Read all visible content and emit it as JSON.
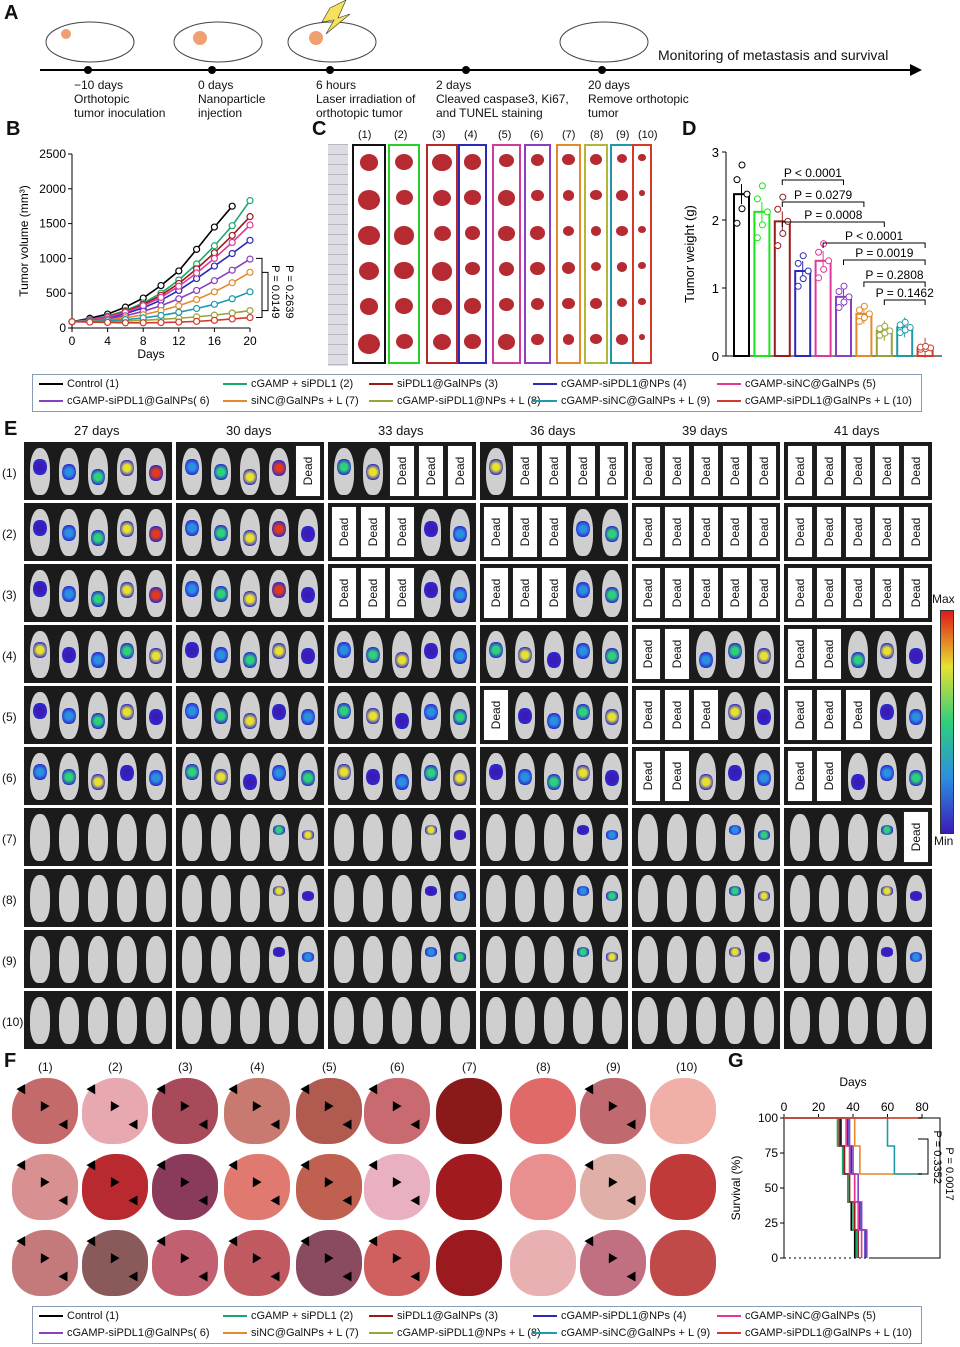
{
  "panels": {
    "a": "A",
    "b": "B",
    "c": "C",
    "d": "D",
    "e": "E",
    "f": "F",
    "g": "G"
  },
  "timeline": {
    "events": [
      {
        "day": "−10 days",
        "desc1": "Orthotopic",
        "desc2": "tumor inoculation"
      },
      {
        "day": "0 days",
        "desc1": "Nanoparticle",
        "desc2": "injection"
      },
      {
        "day": "6 hours",
        "desc1": "Laser irradiation of",
        "desc2": "orthotopic tumor"
      },
      {
        "day": "2 days",
        "desc1": "Cleaved caspase3, Ki67,",
        "desc2": "and TUNEL staining"
      },
      {
        "day": "20 days",
        "desc1": "Remove orthotopic",
        "desc2": "tumor"
      }
    ],
    "end_label": "Monitoring of metastasis and survival"
  },
  "legend": [
    {
      "label": "Control (1)",
      "color": "#000000"
    },
    {
      "label": "cGAMP + siPDL1 (2)",
      "color": "#19a86b"
    },
    {
      "label": "siPDL1@GalNPs (3)",
      "color": "#9b1b1b"
    },
    {
      "label": "cGAMP-siPDL1@NPs (4)",
      "color": "#2a2ab8"
    },
    {
      "label": "cGAMP-siNC@GalNPs (5)",
      "color": "#e0389a"
    },
    {
      "label": "cGAMP-siPDL1@GalNPs( 6)",
      "color": "#8a3fc0"
    },
    {
      "label": "siNC@GalNPs + L (7)",
      "color": "#e58a2a"
    },
    {
      "label": "cGAMP-siPDL1@NPs + L (8)",
      "color": "#9aa33a"
    },
    {
      "label": "cGAMP-siNC@GalNPs + L (9)",
      "color": "#1f9aa8"
    },
    {
      "label": "cGAMP-siPDL1@GalNPs + L (10)",
      "color": "#d43a2a"
    }
  ],
  "chart_data": [
    {
      "type": "line",
      "panel": "B",
      "xlabel": "Days",
      "ylabel": "Tumor volume (mm³)",
      "xticks": [
        "0",
        "4",
        "8",
        "12",
        "16",
        "20"
      ],
      "yticks": [
        "0",
        "500",
        "1000",
        "1500",
        "2000",
        "2500"
      ],
      "xlim": [
        0,
        20
      ],
      "ylim": [
        0,
        2500
      ],
      "x": [
        0,
        2,
        4,
        6,
        8,
        10,
        12,
        14,
        16,
        18,
        20
      ],
      "series": [
        {
          "name": "Control (1)",
          "color": "#000000",
          "x": [
            0,
            2,
            4,
            6,
            8,
            10,
            12,
            14,
            16,
            18
          ],
          "values": [
            90,
            140,
            200,
            300,
            430,
            610,
            820,
            1130,
            1450,
            1750
          ]
        },
        {
          "name": "cGAMP + siPDL1 (2)",
          "color": "#19a86b",
          "x": [
            0,
            2,
            4,
            6,
            8,
            10,
            12,
            14,
            16,
            18,
            20
          ],
          "values": [
            90,
            120,
            170,
            250,
            360,
            500,
            690,
            920,
            1180,
            1470,
            1830
          ]
        },
        {
          "name": "siPDL1@GalNPs (3)",
          "color": "#9b1b1b",
          "x": [
            0,
            2,
            4,
            6,
            8,
            10,
            12,
            14,
            16,
            18,
            20
          ],
          "values": [
            90,
            115,
            160,
            235,
            340,
            470,
            640,
            850,
            1080,
            1330,
            1600
          ]
        },
        {
          "name": "cGAMP-siPDL1@NPs (4)",
          "color": "#2a2ab8",
          "x": [
            0,
            2,
            4,
            6,
            8,
            10,
            12,
            14,
            16,
            18,
            20
          ],
          "values": [
            90,
            110,
            145,
            205,
            290,
            400,
            540,
            710,
            890,
            1070,
            1260
          ]
        },
        {
          "name": "cGAMP-siNC@GalNPs (5)",
          "color": "#e0389a",
          "x": [
            0,
            2,
            4,
            6,
            8,
            10,
            12,
            14,
            16,
            18,
            20
          ],
          "values": [
            90,
            115,
            155,
            225,
            320,
            440,
            600,
            790,
            1000,
            1230,
            1480
          ]
        },
        {
          "name": "cGAMP-siPDL1@GalNPs( 6)",
          "color": "#8a3fc0",
          "x": [
            0,
            2,
            4,
            6,
            8,
            10,
            12,
            14,
            16,
            18,
            20
          ],
          "values": [
            90,
            105,
            130,
            175,
            240,
            320,
            420,
            540,
            680,
            830,
            990
          ]
        },
        {
          "name": "siNC@GalNPs + L (7)",
          "color": "#e58a2a",
          "x": [
            0,
            2,
            4,
            6,
            8,
            10,
            12,
            14,
            16,
            18,
            20
          ],
          "values": [
            90,
            100,
            115,
            145,
            190,
            250,
            320,
            410,
            520,
            650,
            800
          ]
        },
        {
          "name": "cGAMP-siPDL1@NPs + L (8)",
          "color": "#9aa33a",
          "x": [
            0,
            2,
            4,
            6,
            8,
            10,
            12,
            14,
            16,
            18,
            20
          ],
          "values": [
            90,
            90,
            95,
            100,
            110,
            125,
            140,
            160,
            185,
            215,
            250
          ]
        },
        {
          "name": "cGAMP-siNC@GalNPs + L (9)",
          "color": "#1f9aa8",
          "x": [
            0,
            2,
            4,
            6,
            8,
            10,
            12,
            14,
            16,
            18,
            20
          ],
          "values": [
            90,
            95,
            105,
            120,
            145,
            180,
            225,
            280,
            340,
            420,
            520
          ]
        },
        {
          "name": "cGAMP-siPDL1@GalNPs + L (10)",
          "color": "#d43a2a",
          "x": [
            0,
            2,
            4,
            6,
            8,
            10,
            12,
            14,
            16,
            18,
            20
          ],
          "values": [
            90,
            85,
            80,
            75,
            75,
            78,
            85,
            95,
            110,
            130,
            150
          ]
        }
      ],
      "annotations": [
        "P = 0.2639",
        "P = 0.0149"
      ]
    },
    {
      "type": "bar",
      "panel": "D",
      "ylabel": "Tumor weight (g)",
      "yticks": [
        "0",
        "1",
        "2",
        "3"
      ],
      "ylim": [
        0,
        3
      ],
      "categories": [
        "(1)",
        "(2)",
        "(3)",
        "(4)",
        "(5)",
        "(6)",
        "(7)",
        "(8)",
        "(9)",
        "(10)"
      ],
      "values": [
        2.38,
        2.12,
        1.98,
        1.25,
        1.4,
        0.87,
        0.62,
        0.37,
        0.42,
        0.12
      ],
      "colors": [
        "#000000",
        "#19e619",
        "#9b1b1b",
        "#2a2ab8",
        "#e0389a",
        "#8a3fc0",
        "#e58a2a",
        "#9aa33a",
        "#1f9aa8",
        "#d43a2a"
      ],
      "annotations": [
        "P < 0.0001",
        "P = 0.0279",
        "P = 0.0008",
        "P < 0.0001",
        "P = 0.0019",
        "P = 0.2808",
        "P = 0.1462"
      ]
    },
    {
      "type": "line",
      "panel": "G",
      "title": "Days",
      "ylabel": "Survival (%)",
      "xticks": [
        "0",
        "20",
        "40",
        "60",
        "80"
      ],
      "yticks": [
        "0",
        "25",
        "50",
        "75",
        "100"
      ],
      "xlim": [
        0,
        80
      ],
      "ylim": [
        0,
        100
      ],
      "series": [
        {
          "name": "Control (1)",
          "color": "#000000",
          "x": [
            0,
            33,
            33,
            35,
            35,
            37,
            37,
            39,
            39,
            41,
            41
          ],
          "values": [
            100,
            100,
            80,
            80,
            60,
            60,
            40,
            40,
            20,
            20,
            0
          ]
        },
        {
          "name": "cGAMP + siPDL1 (2)",
          "color": "#19a86b",
          "x": [
            0,
            31,
            31,
            34,
            34,
            37,
            37,
            40,
            40,
            42,
            42
          ],
          "values": [
            100,
            100,
            80,
            80,
            60,
            60,
            40,
            40,
            20,
            20,
            0
          ]
        },
        {
          "name": "siPDL1@GalNPs (3)",
          "color": "#9b1b1b",
          "x": [
            0,
            32,
            32,
            35,
            35,
            38,
            38,
            41,
            41,
            43,
            43
          ],
          "values": [
            100,
            100,
            80,
            80,
            60,
            60,
            40,
            40,
            20,
            20,
            0
          ]
        },
        {
          "name": "cGAMP-siPDL1@NPs (4)",
          "color": "#2a2ab8",
          "x": [
            0,
            37,
            37,
            39,
            39,
            41,
            41,
            44,
            44,
            47,
            47
          ],
          "values": [
            100,
            100,
            80,
            80,
            60,
            60,
            40,
            40,
            20,
            20,
            0
          ]
        },
        {
          "name": "cGAMP-siNC@GalNPs (5)",
          "color": "#e0389a",
          "x": [
            0,
            36,
            36,
            38,
            38,
            41,
            41,
            43,
            43,
            45,
            45
          ],
          "values": [
            100,
            100,
            80,
            80,
            60,
            60,
            40,
            40,
            20,
            20,
            0
          ]
        },
        {
          "name": "cGAMP-siPDL1@GalNPs( 6)",
          "color": "#8a3fc0",
          "x": [
            0,
            38,
            38,
            40,
            40,
            43,
            43,
            45,
            45,
            48,
            48
          ],
          "values": [
            100,
            100,
            80,
            80,
            60,
            60,
            40,
            40,
            20,
            20,
            0
          ]
        },
        {
          "name": "siNC@GalNPs + L (7)",
          "color": "#e58a2a",
          "x": [
            0,
            41,
            41,
            44,
            44,
            80
          ],
          "values": [
            100,
            100,
            80,
            80,
            60,
            60
          ]
        },
        {
          "name": "cGAMP-siPDL1@NPs + L (8)",
          "color": "#9aa33a",
          "x": [
            0,
            80
          ],
          "values": [
            100,
            100
          ]
        },
        {
          "name": "cGAMP-siNC@GalNPs + L (9)",
          "color": "#1f9aa8",
          "x": [
            0,
            60,
            60,
            64,
            64,
            80
          ],
          "values": [
            100,
            100,
            80,
            80,
            60,
            60
          ]
        },
        {
          "name": "cGAMP-siPDL1@GalNPs + L (10)",
          "color": "#d43a2a",
          "x": [
            0,
            80
          ],
          "values": [
            100,
            100
          ]
        }
      ],
      "annotations": [
        "P = 0.3352",
        "P = 0.0017"
      ]
    }
  ],
  "panel_c": {
    "columns": [
      "(1)",
      "(2)",
      "(3)",
      "(4)",
      "(5)",
      "(6)",
      "(7)",
      "(8)",
      "(9)",
      "(10)"
    ]
  },
  "panel_e": {
    "timepoints": [
      "27 days",
      "30 days",
      "33 days",
      "36 days",
      "39 days",
      "41 days"
    ],
    "rows": [
      "(1)",
      "(2)",
      "(3)",
      "(4)",
      "(5)",
      "(6)",
      "(7)",
      "(8)",
      "(9)",
      "(10)"
    ],
    "dead_label": "Dead",
    "scale_max": "Max",
    "scale_min": "Min"
  },
  "panel_f": {
    "columns": [
      "(1)",
      "(2)",
      "(3)",
      "(4)",
      "(5)",
      "(6)",
      "(7)",
      "(8)",
      "(9)",
      "(10)"
    ]
  }
}
